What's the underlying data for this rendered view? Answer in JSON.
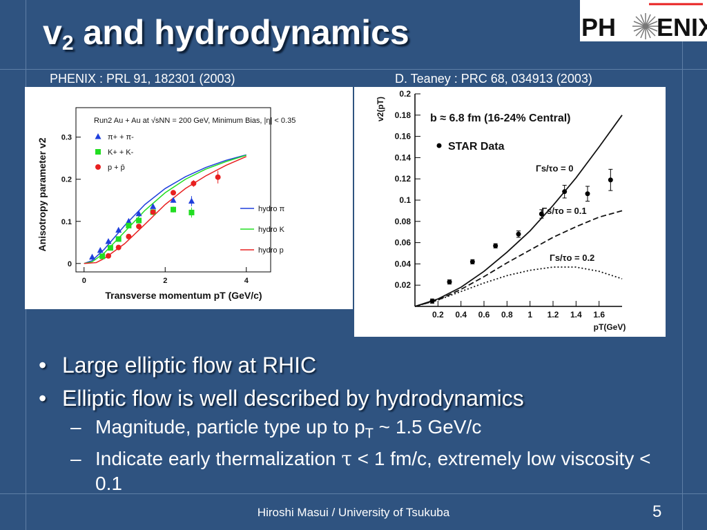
{
  "slide": {
    "title_main": "v",
    "title_sub": "2",
    "title_rest": " and hydrodynamics",
    "logo_text_left": "PH",
    "logo_text_right": "ENIX",
    "ref_left": "PHENIX : PRL 91, 182301 (2003)",
    "ref_right": "D. Teaney : PRC 68, 034913 (2003)",
    "bullets": [
      "Large elliptic flow at RHIC",
      "Elliptic flow is well described by hydrodynamics"
    ],
    "sub_bullets": [
      {
        "prefix": "Magnitude, particle type up to p",
        "sub": "T",
        "suffix": " ~ 1.5 GeV/c"
      },
      {
        "prefix": "Indicate early thermalization ",
        "symbol": "τ",
        "suffix": " < 1 fm/c, extremely low viscosity < 0.1"
      }
    ],
    "footer": "Hiroshi Masui / University of Tsukuba",
    "page_number": "5"
  },
  "chart_data": [
    {
      "type": "scatter",
      "title": "Run2 Au + Au at √sNN = 200 GeV, Minimum Bias, |η| < 0.35",
      "xlabel": "Transverse momentum pT (GeV/c)",
      "ylabel": "Anisotropy parameter v2",
      "xlim": [
        -0.2,
        4.6
      ],
      "ylim": [
        -0.02,
        0.37
      ],
      "xticks": [
        0,
        2,
        4
      ],
      "yticks": [
        0,
        0.1,
        0.2,
        0.3
      ],
      "legend_position": "top-left",
      "series": [
        {
          "name": "π+ + π-",
          "marker": "triangle",
          "color": "#1f3fdc",
          "x": [
            0.2,
            0.4,
            0.6,
            0.85,
            1.1,
            1.35,
            1.7,
            2.2,
            2.65
          ],
          "y": [
            0.015,
            0.031,
            0.052,
            0.079,
            0.1,
            0.118,
            0.135,
            0.15,
            0.148
          ],
          "err": [
            0.002,
            0.002,
            0.002,
            0.003,
            0.003,
            0.003,
            0.004,
            0.006,
            0.012
          ]
        },
        {
          "name": "K+ + K-",
          "marker": "square",
          "color": "#22dd22",
          "x": [
            0.45,
            0.65,
            0.85,
            1.1,
            1.35,
            1.7,
            2.2,
            2.65
          ],
          "y": [
            0.017,
            0.037,
            0.058,
            0.09,
            0.102,
            0.122,
            0.128,
            0.121
          ],
          "err": [
            0.002,
            0.003,
            0.003,
            0.004,
            0.004,
            0.005,
            0.007,
            0.012
          ]
        },
        {
          "name": "p + p̄",
          "marker": "circle",
          "color": "#e82020",
          "x": [
            0.6,
            0.85,
            1.1,
            1.35,
            1.7,
            2.2,
            2.7,
            3.3
          ],
          "y": [
            0.018,
            0.038,
            0.064,
            0.088,
            0.122,
            0.168,
            0.19,
            0.205
          ],
          "err": [
            0.003,
            0.003,
            0.003,
            0.004,
            0.004,
            0.006,
            0.008,
            0.015
          ]
        }
      ],
      "curves": [
        {
          "name": "hydro π",
          "color": "#1f3fdc",
          "x": [
            0,
            0.2,
            0.5,
            1.0,
            1.5,
            2.0,
            2.5,
            3.0,
            3.5,
            4.0
          ],
          "y": [
            0,
            0.007,
            0.034,
            0.09,
            0.14,
            0.178,
            0.206,
            0.228,
            0.245,
            0.258
          ]
        },
        {
          "name": "hydro K",
          "color": "#22dd22",
          "x": [
            0,
            0.2,
            0.5,
            1.0,
            1.5,
            2.0,
            2.5,
            3.0,
            3.5,
            4.0
          ],
          "y": [
            0,
            0.004,
            0.025,
            0.075,
            0.126,
            0.168,
            0.2,
            0.224,
            0.242,
            0.257
          ]
        },
        {
          "name": "hydro p",
          "color": "#e82020",
          "x": [
            0,
            0.3,
            0.5,
            1.0,
            1.5,
            2.0,
            2.5,
            3.0,
            3.5,
            4.0
          ],
          "y": [
            0,
            0.002,
            0.012,
            0.047,
            0.093,
            0.14,
            0.178,
            0.208,
            0.233,
            0.254
          ]
        }
      ]
    },
    {
      "type": "scatter",
      "title": "b ≈ 6.8 fm (16-24% Central)",
      "xlabel": "pT(GeV)",
      "ylabel": "v2(pT)",
      "xlim": [
        0,
        1.8
      ],
      "ylim": [
        0,
        0.2
      ],
      "xticks": [
        0.2,
        0.4,
        0.6,
        0.8,
        1,
        1.2,
        1.4,
        1.6
      ],
      "yticks": [
        0.02,
        0.04,
        0.06,
        0.08,
        0.1,
        0.12,
        0.14,
        0.16,
        0.18,
        0.2
      ],
      "legend": "STAR Data",
      "series": [
        {
          "name": "STAR Data",
          "marker": "circle",
          "color": "#000000",
          "x": [
            0.15,
            0.3,
            0.5,
            0.7,
            0.9,
            1.1,
            1.3,
            1.5,
            1.7
          ],
          "y": [
            0.005,
            0.023,
            0.042,
            0.057,
            0.068,
            0.087,
            0.108,
            0.106,
            0.119
          ],
          "err": [
            0.002,
            0.002,
            0.002,
            0.002,
            0.003,
            0.004,
            0.006,
            0.007,
            0.01
          ]
        }
      ],
      "curves": [
        {
          "label": "Γs/τo = 0",
          "style": "solid",
          "x": [
            0,
            0.2,
            0.4,
            0.6,
            0.8,
            1.0,
            1.2,
            1.4,
            1.6,
            1.8
          ],
          "y": [
            0,
            0.007,
            0.018,
            0.033,
            0.051,
            0.071,
            0.095,
            0.121,
            0.15,
            0.18
          ]
        },
        {
          "label": "Γs/τo = 0.1",
          "style": "dashed",
          "x": [
            0,
            0.2,
            0.4,
            0.6,
            0.8,
            1.0,
            1.2,
            1.4,
            1.6,
            1.8
          ],
          "y": [
            0,
            0.006,
            0.016,
            0.028,
            0.041,
            0.053,
            0.065,
            0.075,
            0.084,
            0.09
          ]
        },
        {
          "label": "Γs/τo = 0.2",
          "style": "dotted",
          "x": [
            0,
            0.2,
            0.4,
            0.6,
            0.8,
            1.0,
            1.2,
            1.4,
            1.6,
            1.8
          ],
          "y": [
            0,
            0.006,
            0.014,
            0.022,
            0.029,
            0.034,
            0.037,
            0.037,
            0.033,
            0.026
          ]
        }
      ]
    }
  ]
}
